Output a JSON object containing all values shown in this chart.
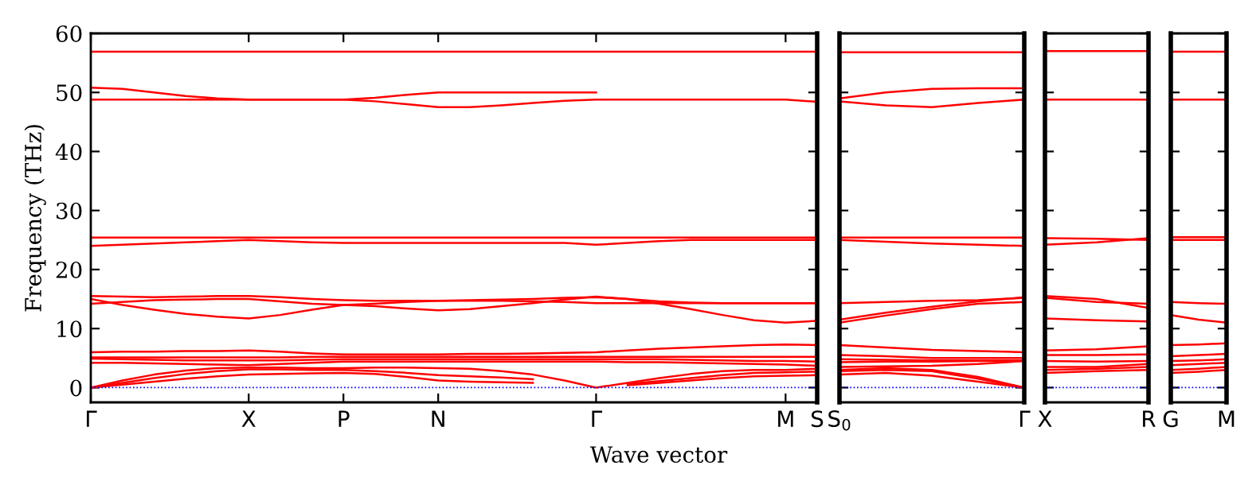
{
  "chart_data": [
    {
      "type": "line",
      "xlabel": "Wave vector",
      "ylabel": "Frequency (THz)",
      "ylim": [
        -2.5,
        60
      ],
      "yticks": [
        0,
        10,
        20,
        30,
        40,
        50,
        60
      ],
      "categories": [
        "Γ",
        null,
        null,
        null,
        null,
        "X",
        null,
        null,
        "P",
        null,
        null,
        "N",
        null,
        null,
        null,
        null,
        "Γ",
        null,
        null,
        null,
        null,
        null,
        "M",
        "S"
      ],
      "ref_lines": [
        {
          "axis": "y",
          "value": 0,
          "color": "#0000ff",
          "line_style": "dotted"
        }
      ],
      "series": [
        {
          "color": "#ff0000",
          "values": [
            56.9,
            56.9,
            56.9,
            56.9,
            56.9,
            56.9,
            56.9,
            56.9,
            56.9,
            56.9,
            56.9,
            56.9,
            56.9,
            56.9,
            56.9,
            56.9,
            56.9,
            56.9,
            56.9,
            56.9,
            56.9,
            56.9,
            56.9,
            56.9
          ]
        },
        {
          "color": "#ff0000",
          "values": [
            50.8,
            50.6,
            50.0,
            49.4,
            49.0,
            48.8,
            48.8,
            48.8,
            48.8,
            49.1,
            49.6,
            50.0,
            50.0,
            50.0,
            50.0,
            50.0,
            50.0,
            null,
            null,
            null,
            null,
            null,
            null,
            null
          ]
        },
        {
          "color": "#ff0000",
          "values": [
            48.8,
            48.8,
            48.8,
            48.8,
            48.8,
            48.8,
            48.8,
            48.8,
            48.8,
            48.5,
            48.0,
            47.5,
            47.5,
            47.8,
            48.2,
            48.6,
            48.8,
            48.8,
            48.8,
            48.8,
            48.8,
            48.8,
            48.8,
            48.4
          ]
        },
        {
          "color": "#ff0000",
          "values": [
            25.4,
            25.4,
            25.4,
            25.4,
            25.4,
            25.4,
            25.4,
            25.4,
            25.4,
            25.4,
            25.4,
            25.4,
            25.4,
            25.4,
            25.4,
            25.4,
            25.4,
            25.4,
            25.4,
            25.4,
            25.4,
            25.4,
            25.4,
            25.4
          ]
        },
        {
          "color": "#ff0000",
          "values": [
            24.0,
            24.2,
            24.4,
            24.6,
            24.8,
            25.0,
            24.8,
            24.6,
            24.5,
            24.5,
            24.5,
            24.5,
            24.5,
            24.5,
            24.5,
            24.5,
            24.2,
            24.5,
            24.8,
            25.0,
            25.0,
            25.0,
            25.0,
            25.0
          ]
        },
        {
          "color": "#ff0000",
          "values": [
            15.5,
            15.4,
            15.3,
            15.4,
            15.5,
            15.5,
            15.3,
            15.0,
            14.8,
            14.7,
            14.7,
            14.7,
            14.7,
            14.7,
            14.6,
            14.5,
            14.3,
            14.3,
            14.3,
            14.3,
            14.3,
            14.3,
            14.3,
            14.3
          ]
        },
        {
          "color": "#ff0000",
          "values": [
            15.0,
            14.0,
            13.2,
            12.5,
            12.0,
            11.7,
            12.3,
            13.2,
            14.0,
            13.8,
            13.4,
            13.1,
            13.3,
            13.8,
            14.3,
            14.9,
            15.4,
            15.0,
            14.2,
            13.3,
            12.3,
            11.4,
            11.0,
            11.3
          ]
        },
        {
          "color": "#ff0000",
          "values": [
            14.2,
            14.5,
            14.8,
            14.9,
            15.0,
            15.0,
            14.6,
            14.2,
            14.0,
            14.2,
            14.5,
            14.7,
            14.8,
            14.9,
            15.0,
            15.2,
            15.3,
            15.0,
            14.6,
            14.4,
            14.3,
            14.3,
            14.3,
            14.3
          ]
        },
        {
          "color": "#ff0000",
          "values": [
            6.0,
            6.1,
            6.1,
            6.2,
            6.2,
            6.3,
            6.1,
            5.8,
            5.6,
            5.6,
            5.6,
            5.6,
            5.7,
            5.7,
            5.8,
            5.9,
            6.0,
            6.3,
            6.6,
            6.8,
            7.0,
            7.2,
            7.3,
            7.2
          ]
        },
        {
          "color": "#ff0000",
          "values": [
            5.1,
            5.1,
            5.1,
            5.1,
            5.1,
            5.1,
            5.1,
            5.2,
            5.2,
            5.2,
            5.2,
            5.2,
            5.2,
            5.2,
            5.2,
            5.2,
            5.2,
            5.2,
            5.2,
            5.2,
            5.2,
            5.2,
            5.2,
            5.2
          ]
        },
        {
          "color": "#ff0000",
          "values": [
            4.2,
            4.2,
            4.1,
            4.0,
            3.9,
            3.8,
            4.0,
            4.2,
            4.4,
            4.4,
            4.4,
            4.4,
            4.4,
            4.4,
            4.4,
            4.4,
            4.4,
            4.3,
            4.3,
            4.2,
            4.1,
            4.0,
            3.9,
            3.7
          ]
        },
        {
          "color": "#ff0000",
          "values": [
            4.9,
            4.8,
            4.7,
            4.6,
            4.6,
            4.6,
            4.6,
            4.7,
            4.8,
            4.8,
            4.8,
            4.8,
            4.8,
            4.8,
            4.8,
            4.8,
            4.8,
            4.8,
            4.8,
            4.7,
            4.6,
            4.5,
            4.5,
            4.4
          ]
        },
        {
          "color": "#ff0000",
          "values": [
            0,
            1.2,
            2.2,
            2.9,
            3.3,
            3.4,
            3.4,
            3.3,
            3.3,
            3.4,
            3.4,
            3.3,
            3.2,
            2.8,
            2.2,
            1.2,
            0,
            0.8,
            1.6,
            2.3,
            2.8,
            3.0,
            3.0,
            3.2
          ]
        },
        {
          "color": "#ff0000",
          "values": [
            0,
            0.8,
            1.6,
            2.3,
            2.8,
            3.1,
            3.1,
            3.0,
            3.0,
            2.8,
            2.5,
            2.1,
            1.9,
            1.7,
            1.4,
            null,
            null,
            null,
            null,
            null,
            null,
            null,
            null,
            null
          ]
        },
        {
          "color": "#ff0000",
          "values": [
            null,
            null,
            null,
            null,
            null,
            null,
            null,
            null,
            null,
            null,
            null,
            null,
            null,
            null,
            null,
            null,
            null,
            0.6,
            1.1,
            1.6,
            2.1,
            2.5,
            2.6,
            2.7
          ]
        },
        {
          "color": "#ff0000",
          "values": [
            0,
            0.5,
            1.0,
            1.5,
            1.9,
            2.2,
            2.3,
            2.4,
            2.5,
            2.3,
            1.8,
            1.2,
            1.0,
            0.9,
            0.8,
            null,
            null,
            null,
            null,
            null,
            null,
            null,
            null,
            null
          ]
        },
        {
          "color": "#ff0000",
          "values": [
            null,
            null,
            null,
            null,
            null,
            null,
            null,
            null,
            null,
            null,
            null,
            null,
            null,
            null,
            null,
            null,
            null,
            0.4,
            0.8,
            1.2,
            1.6,
            1.9,
            2.0,
            2.1
          ]
        }
      ]
    },
    {
      "type": "line",
      "tick_labels": "x",
      "ylim": [
        -2.5,
        60
      ],
      "yticks": [
        0,
        10,
        20,
        30,
        40,
        50,
        60
      ],
      "categories": [
        "S$_{0}$",
        null,
        null,
        null,
        "Γ"
      ],
      "ref_lines": [
        {
          "axis": "y",
          "value": 0,
          "color": "#0000ff",
          "line_style": "dotted"
        }
      ],
      "series": [
        {
          "color": "#ff0000",
          "values": [
            56.8,
            56.8,
            56.8,
            56.8,
            56.8
          ]
        },
        {
          "color": "#ff0000",
          "values": [
            49.0,
            50.0,
            50.6,
            50.7,
            50.7
          ]
        },
        {
          "color": "#ff0000",
          "values": [
            48.5,
            47.8,
            47.5,
            48.2,
            48.8
          ]
        },
        {
          "color": "#ff0000",
          "values": [
            25.4,
            25.4,
            25.4,
            25.4,
            25.4
          ]
        },
        {
          "color": "#ff0000",
          "values": [
            25.0,
            24.7,
            24.4,
            24.2,
            24.0
          ]
        },
        {
          "color": "#ff0000",
          "values": [
            14.3,
            14.5,
            14.7,
            14.8,
            15.2
          ]
        },
        {
          "color": "#ff0000",
          "values": [
            11.5,
            12.7,
            13.7,
            14.6,
            15.3
          ]
        },
        {
          "color": "#ff0000",
          "values": [
            11.0,
            12.2,
            13.3,
            14.2,
            14.5
          ]
        },
        {
          "color": "#ff0000",
          "values": [
            7.2,
            6.8,
            6.4,
            6.2,
            6.0
          ]
        },
        {
          "color": "#ff0000",
          "values": [
            5.5,
            5.3,
            5.0,
            5.0,
            5.0
          ]
        },
        {
          "color": "#ff0000",
          "values": [
            4.8,
            4.7,
            4.6,
            4.6,
            4.6
          ]
        },
        {
          "color": "#ff0000",
          "values": [
            4.3,
            4.4,
            4.4,
            4.5,
            4.5
          ]
        },
        {
          "color": "#ff0000",
          "values": [
            3.5,
            3.6,
            3.7,
            4.0,
            4.5
          ]
        },
        {
          "color": "#ff0000",
          "values": [
            3.0,
            3.3,
            3.0,
            1.8,
            0
          ]
        },
        {
          "color": "#ff0000",
          "values": [
            2.8,
            3.0,
            2.8,
            1.5,
            0
          ]
        },
        {
          "color": "#ff0000",
          "values": [
            2.2,
            2.5,
            2.0,
            1.0,
            0
          ]
        }
      ]
    },
    {
      "type": "line",
      "tick_labels": "x",
      "ylim": [
        -2.5,
        60
      ],
      "yticks": [
        0,
        10,
        20,
        30,
        40,
        50,
        60
      ],
      "categories": [
        "X",
        null,
        "R"
      ],
      "ref_lines": [
        {
          "axis": "y",
          "value": 0,
          "color": "#0000ff",
          "line_style": "dotted"
        }
      ],
      "series": [
        {
          "color": "#ff0000",
          "values": [
            57.0,
            57.0,
            57.0
          ]
        },
        {
          "color": "#ff0000",
          "values": [
            48.8,
            48.8,
            48.8
          ]
        },
        {
          "color": "#ff0000",
          "values": [
            25.3,
            25.2,
            25.0
          ]
        },
        {
          "color": "#ff0000",
          "values": [
            24.2,
            24.6,
            25.3
          ]
        },
        {
          "color": "#ff0000",
          "values": [
            15.5,
            15.0,
            13.5
          ]
        },
        {
          "color": "#ff0000",
          "values": [
            15.2,
            14.5,
            14.2
          ]
        },
        {
          "color": "#ff0000",
          "values": [
            11.7,
            11.4,
            11.2
          ]
        },
        {
          "color": "#ff0000",
          "values": [
            6.3,
            6.5,
            7.0
          ]
        },
        {
          "color": "#ff0000",
          "values": [
            5.5,
            5.5,
            5.6
          ]
        },
        {
          "color": "#ff0000",
          "values": [
            4.5,
            4.4,
            4.5
          ]
        },
        {
          "color": "#ff0000",
          "values": [
            3.5,
            3.5,
            4.0
          ]
        },
        {
          "color": "#ff0000",
          "values": [
            3.0,
            3.2,
            3.5
          ]
        },
        {
          "color": "#ff0000",
          "values": [
            2.5,
            2.8,
            3.0
          ]
        }
      ]
    },
    {
      "type": "line",
      "tick_labels": "x",
      "ylim": [
        -2.5,
        60
      ],
      "yticks": [
        0,
        10,
        20,
        30,
        40,
        50,
        60
      ],
      "categories": [
        "G",
        null,
        "M"
      ],
      "ref_lines": [
        {
          "axis": "y",
          "value": 0,
          "color": "#0000ff",
          "line_style": "dotted"
        }
      ],
      "series": [
        {
          "color": "#ff0000",
          "values": [
            56.9,
            56.9,
            56.9
          ]
        },
        {
          "color": "#ff0000",
          "values": [
            48.8,
            48.8,
            48.8
          ]
        },
        {
          "color": "#ff0000",
          "values": [
            25.5,
            25.5,
            25.5
          ]
        },
        {
          "color": "#ff0000",
          "values": [
            25.0,
            25.0,
            25.0
          ]
        },
        {
          "color": "#ff0000",
          "values": [
            14.5,
            14.3,
            14.2
          ]
        },
        {
          "color": "#ff0000",
          "values": [
            12.3,
            11.5,
            11.0
          ]
        },
        {
          "color": "#ff0000",
          "values": [
            7.2,
            7.3,
            7.5
          ]
        },
        {
          "color": "#ff0000",
          "values": [
            5.3,
            5.5,
            5.7
          ]
        },
        {
          "color": "#ff0000",
          "values": [
            4.5,
            4.6,
            4.8
          ]
        },
        {
          "color": "#ff0000",
          "values": [
            3.8,
            4.0,
            4.2
          ]
        },
        {
          "color": "#ff0000",
          "values": [
            3.0,
            3.2,
            3.5
          ]
        },
        {
          "color": "#ff0000",
          "values": [
            2.5,
            2.7,
            3.0
          ]
        }
      ]
    }
  ]
}
